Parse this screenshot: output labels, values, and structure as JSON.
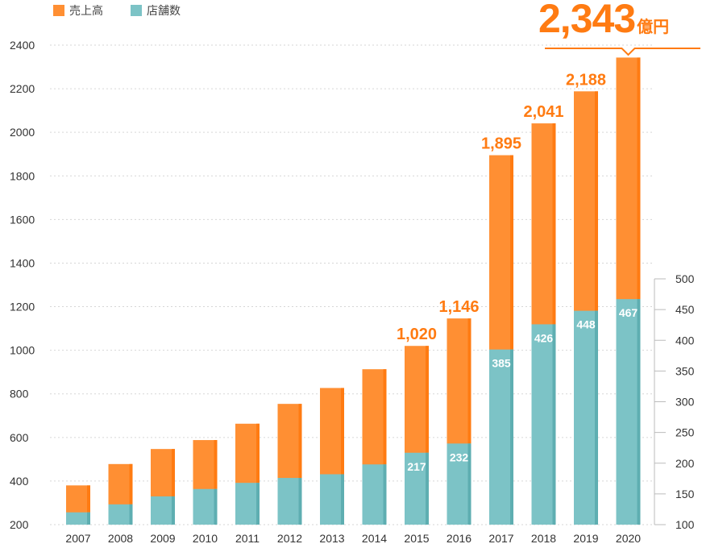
{
  "legend": {
    "sales": "売上高",
    "stores": "店舗数"
  },
  "callout": {
    "value": "2,343",
    "unit": "億円"
  },
  "colors": {
    "sales": "#ff8f33",
    "sales_edge": "#ff7b12",
    "stores": "#7cc3c6",
    "stores_edge": "#5eaeb1",
    "label": "#ff7b12",
    "axis": "#333333"
  },
  "chart_data": {
    "type": "bar",
    "categories": [
      "2007",
      "2008",
      "2009",
      "2010",
      "2011",
      "2012",
      "2013",
      "2014",
      "2015",
      "2016",
      "2017",
      "2018",
      "2019",
      "2020"
    ],
    "series": [
      {
        "name": "売上高",
        "axis": "left",
        "values": [
          380,
          478,
          547,
          588,
          663,
          754,
          827,
          913,
          1020,
          1146,
          1895,
          2041,
          2188,
          2343
        ]
      },
      {
        "name": "店舗数",
        "axis": "right",
        "values": [
          120,
          133,
          146,
          158,
          168,
          176,
          182,
          198,
          217,
          232,
          385,
          426,
          448,
          467
        ]
      }
    ],
    "sales_labels": {
      "2015": "1,020",
      "2016": "1,146",
      "2017": "1,895",
      "2018": "2,041",
      "2019": "2,188"
    },
    "store_labels": {
      "2015": "217",
      "2016": "232",
      "2017": "385",
      "2018": "426",
      "2019": "448",
      "2020": "467"
    },
    "left_axis": {
      "ylim": [
        200,
        2400
      ],
      "ticks": [
        200,
        400,
        600,
        800,
        1000,
        1200,
        1400,
        1600,
        1800,
        2000,
        2200,
        2400
      ]
    },
    "right_axis": {
      "ylim": [
        100,
        500
      ],
      "ticks": [
        100,
        150,
        200,
        250,
        300,
        350,
        400,
        450,
        500
      ]
    },
    "grid": true,
    "legend_position": "top-left"
  }
}
